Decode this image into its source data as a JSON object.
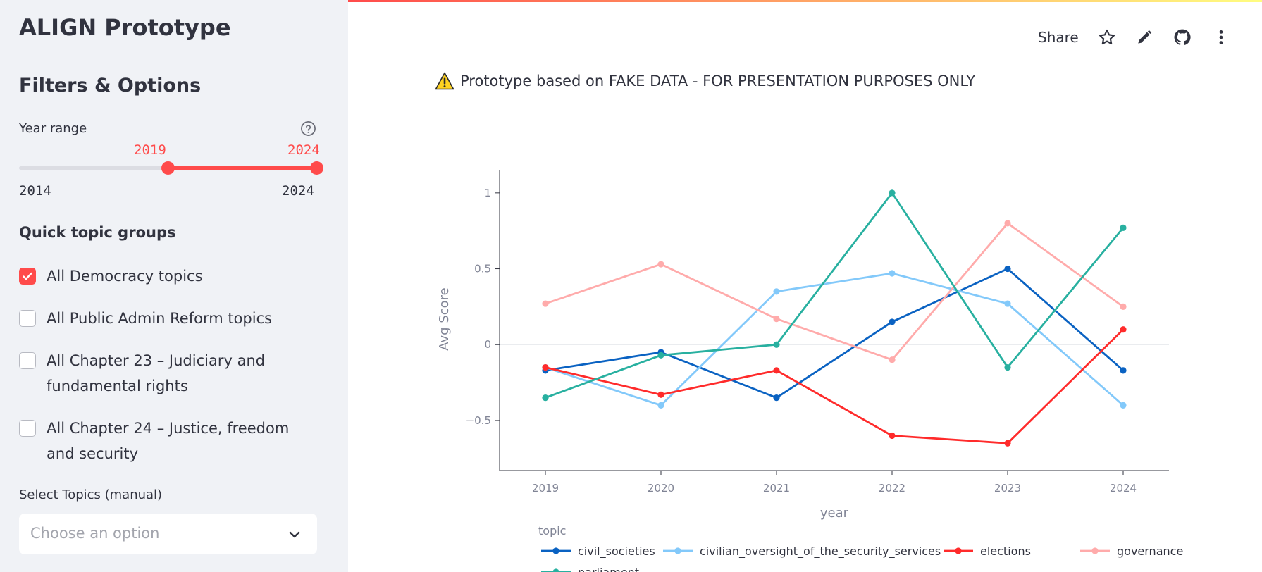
{
  "sidebar": {
    "app_title": "ALIGN Prototype",
    "section_title": "Filters & Options",
    "year_range": {
      "label": "Year range",
      "selected_low": "2019",
      "selected_high": "2024",
      "min_label": "2014",
      "max_label": "2024",
      "min": 2014,
      "max": 2024,
      "low": 2019,
      "high": 2024
    },
    "quick_topics": {
      "title": "Quick topic groups",
      "items": [
        {
          "label": "All Democracy topics",
          "checked": true
        },
        {
          "label": "All Public Admin Reform topics",
          "checked": false
        },
        {
          "label": "All Chapter 23 – Judiciary and fundamental rights",
          "checked": false
        },
        {
          "label": "All Chapter 24 – Justice, freedom and security",
          "checked": false
        }
      ]
    },
    "select_topics": {
      "label": "Select Topics (manual)",
      "placeholder": "Choose an option"
    }
  },
  "toolbar": {
    "share_label": "Share",
    "icons": [
      "star-icon",
      "pencil-icon",
      "github-icon",
      "more-vertical-icon"
    ]
  },
  "warning": {
    "icon": "warning-icon",
    "text": "Prototype based on FAKE DATA - FOR PRESENTATION PURPOSES ONLY"
  },
  "chart_data": {
    "type": "line",
    "title": "",
    "xlabel": "year",
    "ylabel": "Avg Score",
    "x": [
      2019,
      2020,
      2021,
      2022,
      2023,
      2024
    ],
    "x_ticks": [
      "2019",
      "2020",
      "2021",
      "2022",
      "2023",
      "2024"
    ],
    "y_ticks": [
      {
        "v": 1,
        "label": "1"
      },
      {
        "v": 0.5,
        "label": "0.5"
      },
      {
        "v": 0,
        "label": "0"
      },
      {
        "v": -0.5,
        "label": "−0.5"
      }
    ],
    "ylim": [
      -0.83,
      1.12
    ],
    "legend_title": "topic",
    "legend_position": "bottom",
    "series": [
      {
        "name": "civil_societies",
        "color": "#0a62c2",
        "values": [
          -0.17,
          -0.05,
          -0.35,
          0.15,
          0.5,
          -0.17
        ]
      },
      {
        "name": "civilian_oversight_of_the_security_services",
        "color": "#83c9fa",
        "values": [
          -0.15,
          -0.4,
          0.35,
          0.47,
          0.27,
          -0.4
        ]
      },
      {
        "name": "elections",
        "color": "#ff2b2b",
        "values": [
          -0.15,
          -0.33,
          -0.17,
          -0.6,
          -0.65,
          0.1
        ]
      },
      {
        "name": "governance",
        "color": "#ffabab",
        "values": [
          0.27,
          0.53,
          0.17,
          -0.1,
          0.8,
          0.25
        ]
      },
      {
        "name": "parliament",
        "color": "#28b0a0",
        "values": [
          -0.35,
          -0.07,
          0.0,
          1.0,
          -0.15,
          0.77
        ]
      }
    ]
  }
}
